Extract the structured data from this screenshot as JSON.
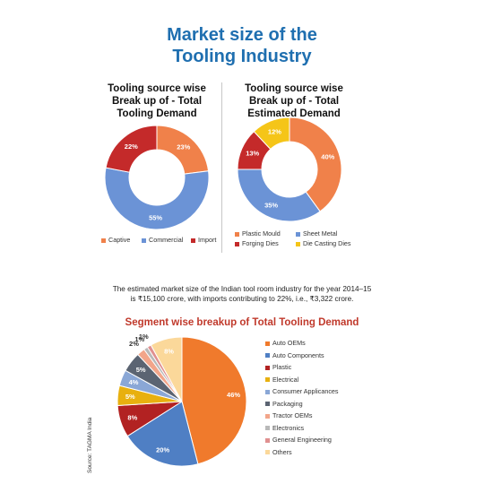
{
  "page": {
    "title_line1": "Market size of the",
    "title_line2": "Tooling Industry",
    "note_line1": "The estimated market size of the Indian tool room industry for the year 2014–15",
    "note_line2": "is ₹15,100 crore, with imports contributing to 22%, i.e., ₹3,322 crore.",
    "source": "Source: TAGMA India"
  },
  "chart_data": [
    {
      "type": "pie",
      "donut": true,
      "title_lines": [
        "Tooling source wise",
        "Break up of - Total",
        "Tooling Demand"
      ],
      "categories": [
        "Captive",
        "Commercial",
        "Import"
      ],
      "values": [
        23,
        55,
        22
      ],
      "labels": [
        "23%",
        "55%",
        "22%"
      ],
      "colors": [
        "#f0814a",
        "#6b93d6",
        "#c42a2a"
      ],
      "legend_position": "bottom"
    },
    {
      "type": "pie",
      "donut": true,
      "title_lines": [
        "Tooling source wise",
        "Break up of - Total",
        "Estimated Demand"
      ],
      "categories": [
        "Plastic Mould",
        "Sheet Metal",
        "Forging Dies",
        "Die Casting Dies"
      ],
      "values": [
        40,
        35,
        13,
        12
      ],
      "labels": [
        "40%",
        "35%",
        "13%",
        "12%"
      ],
      "colors": [
        "#f0814a",
        "#6b93d6",
        "#c42a2a",
        "#f5c518"
      ],
      "legend_position": "bottom"
    },
    {
      "type": "pie",
      "donut": false,
      "title": "Segment wise breakup of Total Tooling Demand",
      "categories": [
        "Auto OEMs",
        "Auto Components",
        "Plastic",
        "Electrical",
        "Consumer Applicances",
        "Packaging",
        "Tractor OEMs",
        "Electronics",
        "General Engineering",
        "Others"
      ],
      "values": [
        46,
        20,
        8,
        5,
        4,
        5,
        2,
        1,
        1,
        8
      ],
      "labels": [
        "46%",
        "20%",
        "8%",
        "5%",
        "4%",
        "5%",
        "2%",
        "1%",
        "1%",
        "8%"
      ],
      "colors": [
        "#f07a2c",
        "#4f7fc4",
        "#b22222",
        "#e8b00f",
        "#8aa7d6",
        "#5b6472",
        "#f2a58a",
        "#b9b9b9",
        "#e09090",
        "#fbd89a"
      ],
      "legend_position": "right"
    }
  ]
}
